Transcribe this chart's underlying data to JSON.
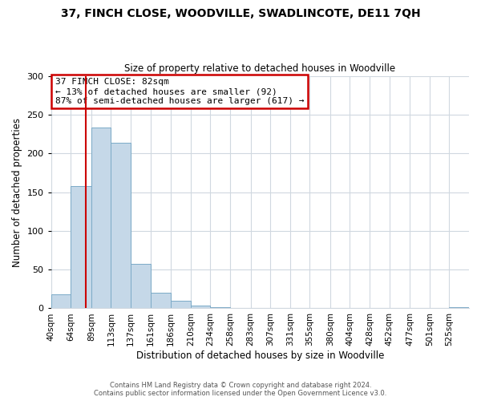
{
  "title": "37, FINCH CLOSE, WOODVILLE, SWADLINCOTE, DE11 7QH",
  "subtitle": "Size of property relative to detached houses in Woodville",
  "xlabel": "Distribution of detached houses by size in Woodville",
  "ylabel": "Number of detached properties",
  "bar_values": [
    18,
    158,
    233,
    214,
    57,
    20,
    10,
    4,
    2,
    0,
    0,
    0,
    0,
    0,
    0,
    0,
    0,
    0,
    0,
    0,
    2
  ],
  "bar_labels": [
    "40sqm",
    "64sqm",
    "89sqm",
    "113sqm",
    "137sqm",
    "161sqm",
    "186sqm",
    "210sqm",
    "234sqm",
    "258sqm",
    "283sqm",
    "307sqm",
    "331sqm",
    "355sqm",
    "380sqm",
    "404sqm",
    "428sqm",
    "452sqm",
    "477sqm",
    "501sqm",
    "525sqm"
  ],
  "bin_edges": [
    40,
    64,
    89,
    113,
    137,
    161,
    186,
    210,
    234,
    258,
    283,
    307,
    331,
    355,
    380,
    404,
    428,
    452,
    477,
    501,
    525,
    549
  ],
  "bar_color": "#c5d8e8",
  "bar_edgecolor": "#7baac7",
  "vline_x": 82,
  "vline_color": "#cc0000",
  "ylim": [
    0,
    300
  ],
  "yticks": [
    0,
    50,
    100,
    150,
    200,
    250,
    300
  ],
  "annotation_title": "37 FINCH CLOSE: 82sqm",
  "annotation_line1": "← 13% of detached houses are smaller (92)",
  "annotation_line2": "87% of semi-detached houses are larger (617) →",
  "annotation_box_color": "#cc0000",
  "footer1": "Contains HM Land Registry data © Crown copyright and database right 2024.",
  "footer2": "Contains public sector information licensed under the Open Government Licence v3.0.",
  "bg_color": "#ffffff",
  "grid_color": "#d0d8e0"
}
